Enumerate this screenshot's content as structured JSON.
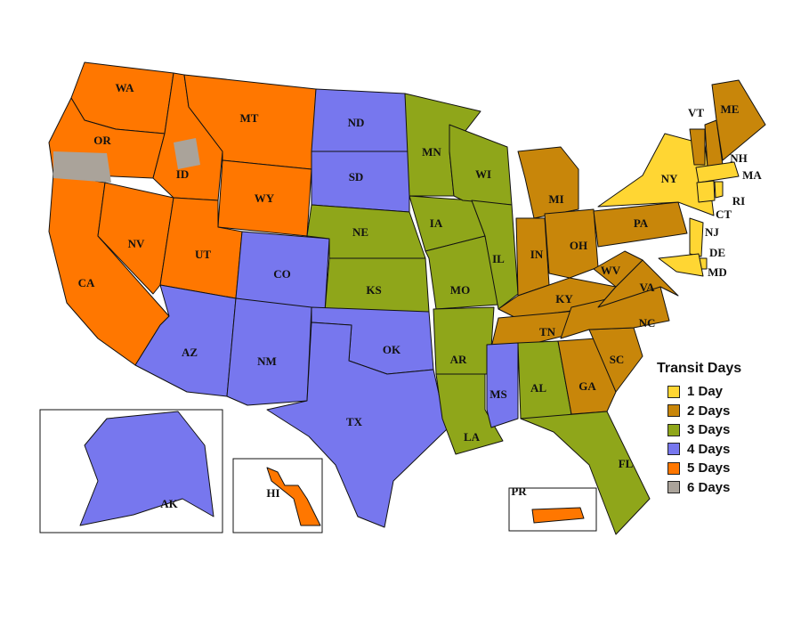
{
  "legend": {
    "title": "Transit Days",
    "items": [
      {
        "label": "1 Day",
        "days": 1,
        "color": "#FFD633"
      },
      {
        "label": "2 Days",
        "days": 2,
        "color": "#C8860A"
      },
      {
        "label": "3 Days",
        "days": 3,
        "color": "#8FA61A"
      },
      {
        "label": "4 Days",
        "days": 4,
        "color": "#7777EE"
      },
      {
        "label": "5 Days",
        "days": 5,
        "color": "#FF7700"
      },
      {
        "label": "6 Days",
        "days": 6,
        "color": "#AAA39A"
      }
    ]
  },
  "states": [
    {
      "abbr": "WA",
      "days": 5
    },
    {
      "abbr": "OR",
      "days": 5
    },
    {
      "abbr": "CA",
      "days": 5
    },
    {
      "abbr": "NV",
      "days": 5
    },
    {
      "abbr": "ID",
      "days": 5
    },
    {
      "abbr": "MT",
      "days": 5
    },
    {
      "abbr": "WY",
      "days": 5
    },
    {
      "abbr": "UT",
      "days": 5
    },
    {
      "abbr": "CO",
      "days": 4
    },
    {
      "abbr": "AZ",
      "days": 4
    },
    {
      "abbr": "NM",
      "days": 4
    },
    {
      "abbr": "ND",
      "days": 4
    },
    {
      "abbr": "SD",
      "days": 4
    },
    {
      "abbr": "NE",
      "days": 3
    },
    {
      "abbr": "KS",
      "days": 3
    },
    {
      "abbr": "OK",
      "days": 4
    },
    {
      "abbr": "TX",
      "days": 4
    },
    {
      "abbr": "MN",
      "days": 3
    },
    {
      "abbr": "IA",
      "days": 3
    },
    {
      "abbr": "MO",
      "days": 3
    },
    {
      "abbr": "AR",
      "days": 3
    },
    {
      "abbr": "LA",
      "days": 3
    },
    {
      "abbr": "WI",
      "days": 3
    },
    {
      "abbr": "IL",
      "days": 3
    },
    {
      "abbr": "MI",
      "days": 2
    },
    {
      "abbr": "IN",
      "days": 2
    },
    {
      "abbr": "OH",
      "days": 2
    },
    {
      "abbr": "KY",
      "days": 2
    },
    {
      "abbr": "TN",
      "days": 2
    },
    {
      "abbr": "MS",
      "days": 4
    },
    {
      "abbr": "AL",
      "days": 3
    },
    {
      "abbr": "GA",
      "days": 2
    },
    {
      "abbr": "FL",
      "days": 3
    },
    {
      "abbr": "SC",
      "days": 2
    },
    {
      "abbr": "NC",
      "days": 2
    },
    {
      "abbr": "VA",
      "days": 2
    },
    {
      "abbr": "WV",
      "days": 2
    },
    {
      "abbr": "PA",
      "days": 2
    },
    {
      "abbr": "NY",
      "days": 1
    },
    {
      "abbr": "VT",
      "days": 2
    },
    {
      "abbr": "NH",
      "days": 2
    },
    {
      "abbr": "ME",
      "days": 2
    },
    {
      "abbr": "MA",
      "days": 1
    },
    {
      "abbr": "CT",
      "days": 1
    },
    {
      "abbr": "RI",
      "days": 1
    },
    {
      "abbr": "NJ",
      "days": 1
    },
    {
      "abbr": "DE",
      "days": 1
    },
    {
      "abbr": "MD",
      "days": 1
    },
    {
      "abbr": "AK",
      "days": 4
    },
    {
      "abbr": "HI",
      "days": 5
    },
    {
      "abbr": "PR",
      "days": 5
    }
  ]
}
